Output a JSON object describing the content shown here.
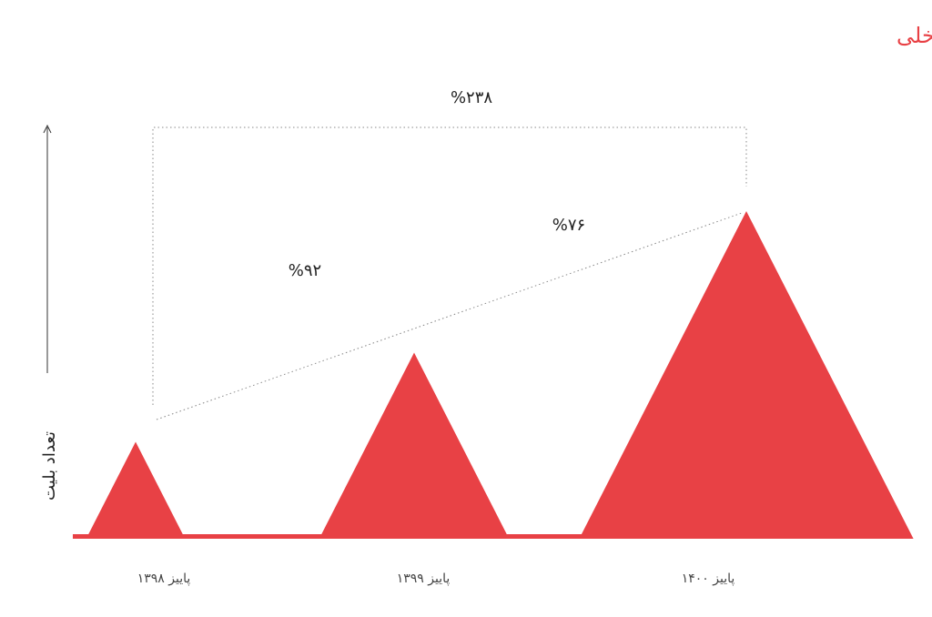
{
  "chart_data": {
    "type": "triangle",
    "title": "فروش بلیت پرواز داخلی",
    "y_label": "تعداد بلیت",
    "categories": [
      "پاییز ۱۳۹۸",
      "پاییز ۱۳۹۹",
      "پاییز ۱۴۰۰"
    ],
    "values": [
      100,
      192,
      338
    ],
    "color": "#e84145",
    "annotations": [
      {
        "text": "%۲۳۸"
      },
      {
        "text": "%۹۲"
      },
      {
        "text": "%۷۶"
      }
    ]
  }
}
